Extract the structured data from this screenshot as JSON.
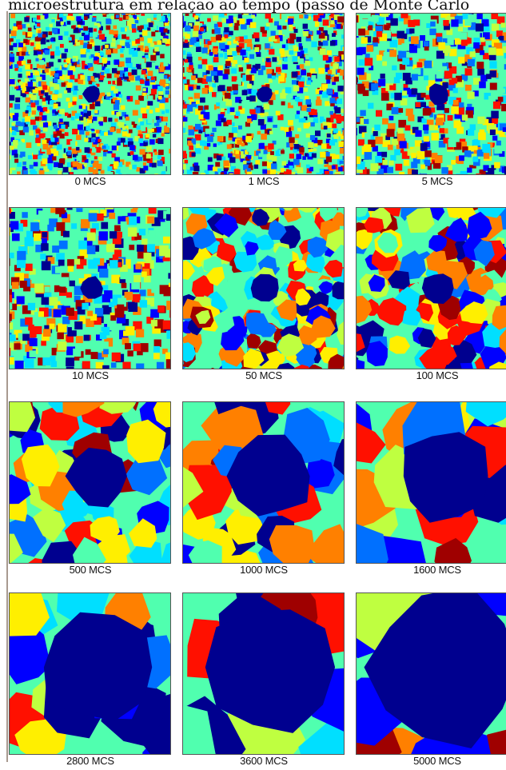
{
  "caption_fragment": "microestrutura em relação ao tempo (passo de Monte Carlo",
  "colormap": [
    "#00008f",
    "#0000ff",
    "#0070ff",
    "#00dfff",
    "#50ffaf",
    "#bfff40",
    "#ffef00",
    "#ff8000",
    "#ff1000",
    "#9f0000"
  ],
  "panels": [
    {
      "label": "0 MCS"
    },
    {
      "label": "1 MCS"
    },
    {
      "label": "5 MCS"
    },
    {
      "label": "10 MCS"
    },
    {
      "label": "50 MCS"
    },
    {
      "label": "100 MCS"
    },
    {
      "label": "500 MCS"
    },
    {
      "label": "1000 MCS"
    },
    {
      "label": "1600 MCS"
    },
    {
      "label": "2800 MCS"
    },
    {
      "label": "3600 MCS"
    },
    {
      "label": "5000 MCS"
    }
  ]
}
